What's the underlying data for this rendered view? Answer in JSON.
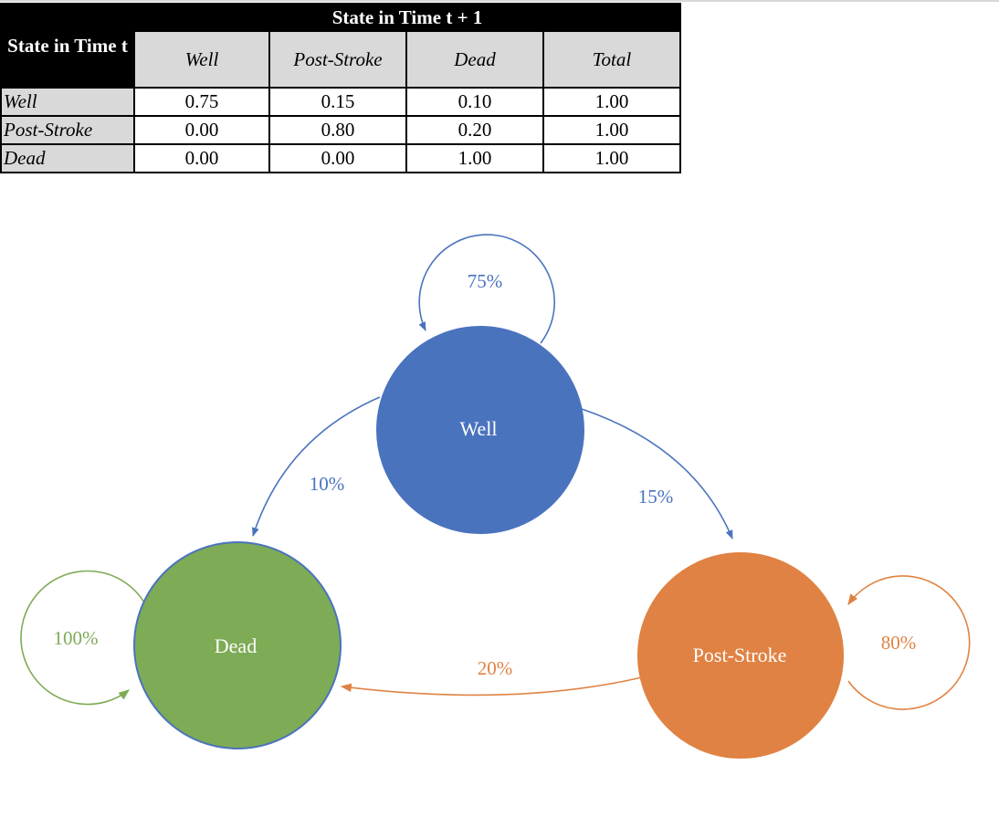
{
  "table": {
    "top_header": "State in Time t + 1",
    "row_header": "State in Time t",
    "columns": [
      "Well",
      "Post-Stroke",
      "Dead",
      "Total"
    ],
    "rows": [
      {
        "state": "Well",
        "values": [
          "0.75",
          "0.15",
          "0.10",
          "1.00"
        ]
      },
      {
        "state": "Post-Stroke",
        "values": [
          "0.00",
          "0.80",
          "0.20",
          "1.00"
        ]
      },
      {
        "state": "Dead",
        "values": [
          "0.00",
          "0.00",
          "1.00",
          "1.00"
        ]
      }
    ]
  },
  "diagram": {
    "nodes": {
      "well": {
        "label": "Well",
        "color": "#4a73be"
      },
      "dead": {
        "label": "Dead",
        "color": "#7eab55"
      },
      "post_stroke": {
        "label": "Post-Stroke",
        "color": "#e08243"
      }
    },
    "edges": {
      "well_self": {
        "label": "75%",
        "color": "#4a73be"
      },
      "well_to_dead": {
        "label": "10%",
        "color": "#4a73be"
      },
      "well_to_post": {
        "label": "15%",
        "color": "#4a73be"
      },
      "post_to_dead": {
        "label": "20%",
        "color": "#e08243"
      },
      "post_self": {
        "label": "80%",
        "color": "#e08243"
      },
      "dead_self": {
        "label": "100%",
        "color": "#7eab55"
      }
    }
  }
}
